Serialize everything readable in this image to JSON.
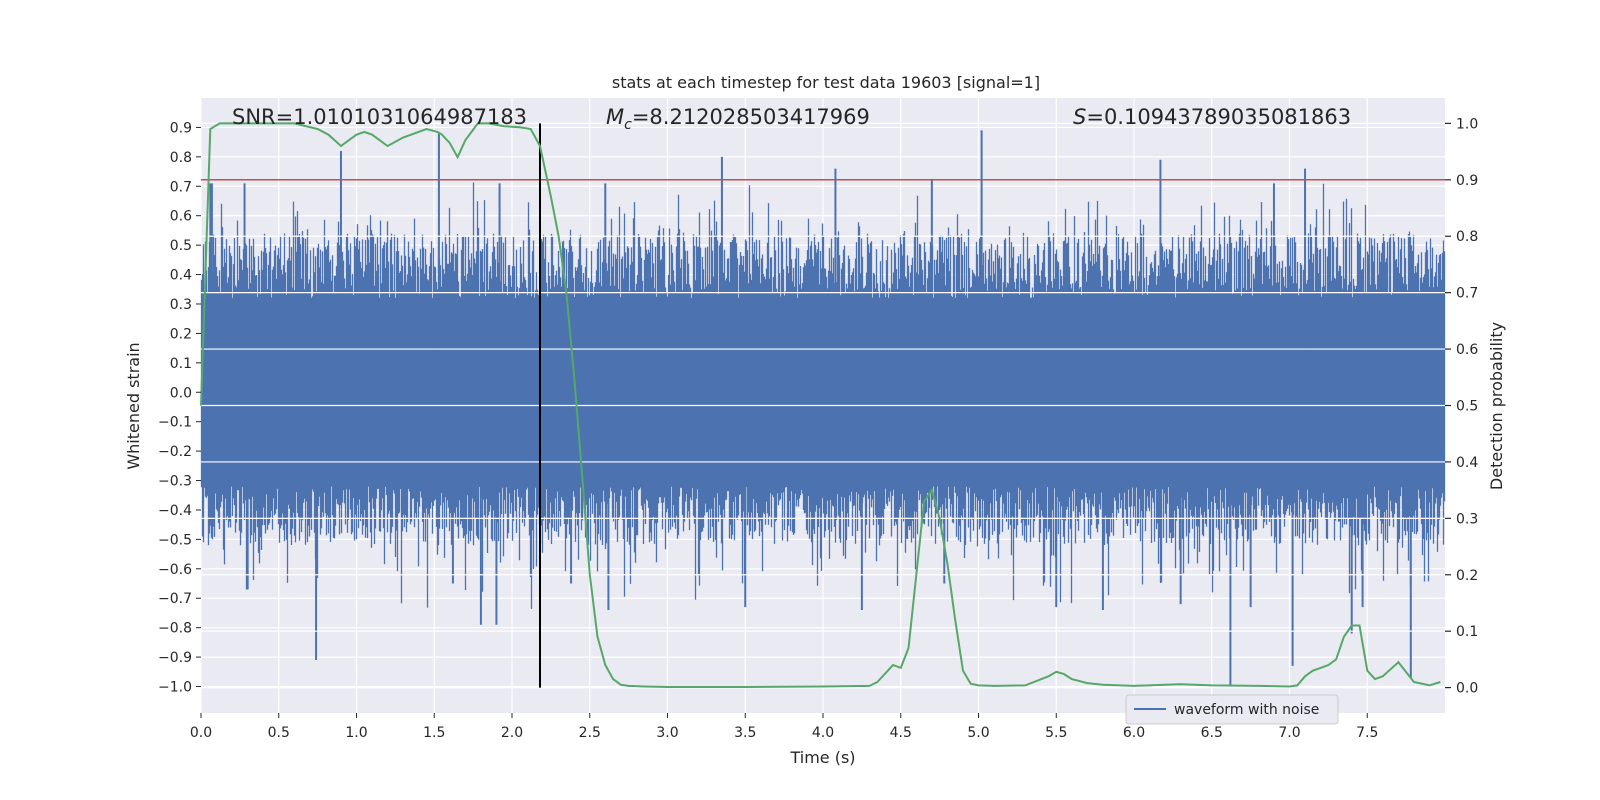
{
  "chart_data": {
    "type": "line",
    "title": "stats at each timestep for test data 19603 [signal=1]",
    "xlabel": "Time (s)",
    "ylabel": "Whitened strain",
    "y2label": "Detection probability",
    "xlim": [
      0.0,
      8.0
    ],
    "ylim": [
      -1.09,
      1.0
    ],
    "y2lim": [
      -0.045,
      1.045
    ],
    "x_ticks": [
      0.0,
      0.5,
      1.0,
      1.5,
      2.0,
      2.5,
      3.0,
      3.5,
      4.0,
      4.5,
      5.0,
      5.5,
      6.0,
      6.5,
      7.0,
      7.5
    ],
    "x_tick_labels": [
      "0.0",
      "0.5",
      "1.0",
      "1.5",
      "2.0",
      "2.5",
      "3.0",
      "3.5",
      "4.0",
      "4.5",
      "5.0",
      "5.5",
      "6.0",
      "6.5",
      "7.0",
      "7.5"
    ],
    "y_ticks": [
      0.9,
      0.8,
      0.7,
      0.6,
      0.5,
      0.4,
      0.3,
      0.2,
      0.1,
      0.0,
      -0.1,
      -0.2,
      -0.3,
      -0.4,
      -0.5,
      -0.6,
      -0.7,
      -0.8,
      -0.9,
      -1.0
    ],
    "y_tick_labels": [
      "0.9",
      "0.8",
      "0.7",
      "0.6",
      "0.5",
      "0.4",
      "0.3",
      "0.2",
      "0.1",
      "0.0",
      "−0.1",
      "−0.2",
      "−0.3",
      "−0.4",
      "−0.5",
      "−0.6",
      "−0.7",
      "−0.8",
      "−0.9",
      "−1.0"
    ],
    "y2_ticks": [
      1.0,
      0.9,
      0.8,
      0.7,
      0.6,
      0.5,
      0.4,
      0.3,
      0.2,
      0.1,
      0.0
    ],
    "y2_tick_labels": [
      "1.0",
      "0.9",
      "0.8",
      "0.7",
      "0.6",
      "0.5",
      "0.4",
      "0.3",
      "0.2",
      "0.1",
      "0.0"
    ],
    "grid": true,
    "legend_placement": "lower-right",
    "stats": {
      "snr": "SNR=1.0101031064987183",
      "mc_symbol": "M",
      "mc_sub": "c",
      "mc_value": "=8.212028503417969",
      "s_symbol": "S",
      "s_value": "=0.10943789035081863"
    },
    "waveform": {
      "name": "waveform with noise",
      "color": "#4c72b0",
      "sample_rate": 2048,
      "core_amplitude": 0.32,
      "spikes": [
        {
          "x": 0.06,
          "y": 0.71
        },
        {
          "x": 0.07,
          "y": 0.71
        },
        {
          "x": 0.28,
          "y": 0.71
        },
        {
          "x": 0.3,
          "y": -0.67
        },
        {
          "x": 0.74,
          "y": -0.91
        },
        {
          "x": 0.9,
          "y": 0.82
        },
        {
          "x": 1.53,
          "y": 0.88
        },
        {
          "x": 1.62,
          "y": -0.65
        },
        {
          "x": 1.8,
          "y": -0.79
        },
        {
          "x": 1.9,
          "y": -0.79
        },
        {
          "x": 1.92,
          "y": 0.71
        },
        {
          "x": 2.38,
          "y": -0.65
        },
        {
          "x": 2.6,
          "y": 0.71
        },
        {
          "x": 2.62,
          "y": -0.74
        },
        {
          "x": 3.35,
          "y": 0.8
        },
        {
          "x": 3.5,
          "y": -0.73
        },
        {
          "x": 4.08,
          "y": 0.76
        },
        {
          "x": 4.25,
          "y": -0.74
        },
        {
          "x": 4.7,
          "y": 0.72
        },
        {
          "x": 4.78,
          "y": -0.65
        },
        {
          "x": 5.02,
          "y": 0.89
        },
        {
          "x": 5.5,
          "y": -0.73
        },
        {
          "x": 5.8,
          "y": -0.74
        },
        {
          "x": 6.17,
          "y": 0.79
        },
        {
          "x": 6.3,
          "y": -0.72
        },
        {
          "x": 6.62,
          "y": -1.0
        },
        {
          "x": 6.75,
          "y": -0.73
        },
        {
          "x": 6.9,
          "y": 0.71
        },
        {
          "x": 7.02,
          "y": -0.93
        },
        {
          "x": 7.1,
          "y": 0.76
        },
        {
          "x": 7.4,
          "y": -0.82
        },
        {
          "x": 7.47,
          "y": -0.73
        },
        {
          "x": 7.78,
          "y": -0.97
        }
      ]
    },
    "threshold": {
      "y2": 0.9,
      "color": "#c44e52"
    },
    "event_marker": {
      "x": 2.18,
      "color": "#000000"
    },
    "probability": {
      "color": "#55a868",
      "x": [
        0.0,
        0.06,
        0.12,
        0.2,
        0.4,
        0.6,
        0.75,
        0.82,
        0.9,
        0.95,
        1.0,
        1.05,
        1.1,
        1.2,
        1.3,
        1.45,
        1.52,
        1.55,
        1.6,
        1.65,
        1.7,
        1.78,
        1.85,
        1.95,
        2.05,
        2.12,
        2.18,
        2.25,
        2.3,
        2.35,
        2.4,
        2.45,
        2.5,
        2.55,
        2.6,
        2.65,
        2.7,
        2.75,
        2.85,
        3.0,
        3.5,
        4.0,
        4.3,
        4.35,
        4.4,
        4.45,
        4.5,
        4.55,
        4.6,
        4.65,
        4.7,
        4.75,
        4.8,
        4.85,
        4.9,
        4.95,
        5.0,
        5.1,
        5.3,
        5.45,
        5.5,
        5.55,
        5.6,
        5.7,
        5.8,
        6.0,
        6.2,
        6.3,
        6.5,
        6.8,
        7.0,
        7.05,
        7.1,
        7.15,
        7.2,
        7.25,
        7.3,
        7.35,
        7.4,
        7.45,
        7.5,
        7.55,
        7.6,
        7.7,
        7.8,
        7.9,
        7.97
      ],
      "y": [
        0.5,
        0.99,
        1.0,
        1.0,
        1.0,
        1.0,
        0.99,
        0.98,
        0.96,
        0.97,
        0.98,
        0.985,
        0.98,
        0.96,
        0.975,
        0.99,
        0.985,
        0.98,
        0.965,
        0.94,
        0.97,
        1.0,
        1.0,
        0.995,
        0.993,
        0.99,
        0.96,
        0.87,
        0.8,
        0.7,
        0.55,
        0.38,
        0.2,
        0.09,
        0.04,
        0.015,
        0.005,
        0.003,
        0.002,
        0.001,
        0.001,
        0.002,
        0.003,
        0.01,
        0.025,
        0.04,
        0.035,
        0.07,
        0.2,
        0.33,
        0.35,
        0.3,
        0.22,
        0.12,
        0.03,
        0.007,
        0.004,
        0.003,
        0.004,
        0.02,
        0.028,
        0.024,
        0.015,
        0.008,
        0.005,
        0.003,
        0.005,
        0.006,
        0.004,
        0.003,
        0.002,
        0.004,
        0.02,
        0.03,
        0.035,
        0.04,
        0.05,
        0.09,
        0.11,
        0.11,
        0.03,
        0.015,
        0.02,
        0.045,
        0.01,
        0.004,
        0.01
      ]
    }
  }
}
